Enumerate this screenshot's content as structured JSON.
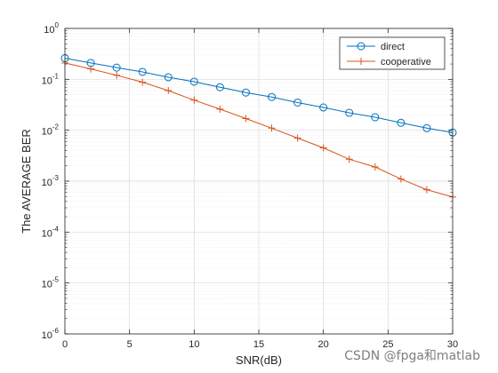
{
  "chart_data": {
    "type": "line",
    "xlabel": "SNR(dB)",
    "ylabel": "The AVERAGE BER",
    "xlim": [
      0,
      30
    ],
    "ylim": [
      1e-06,
      1
    ],
    "yscale": "log",
    "grid": true,
    "legend_position": "top-right",
    "x_ticks": [
      0,
      5,
      10,
      15,
      20,
      25,
      30
    ],
    "y_ticks": [
      {
        "mantissa": "10",
        "exp": "0"
      },
      {
        "mantissa": "10",
        "exp": "-1"
      },
      {
        "mantissa": "10",
        "exp": "-2"
      },
      {
        "mantissa": "10",
        "exp": "-3"
      },
      {
        "mantissa": "10",
        "exp": "-4"
      },
      {
        "mantissa": "10",
        "exp": "-5"
      },
      {
        "mantissa": "10",
        "exp": "-6"
      }
    ],
    "x": [
      0,
      2,
      4,
      6,
      8,
      10,
      12,
      14,
      16,
      18,
      20,
      22,
      24,
      26,
      28,
      30
    ],
    "series": [
      {
        "name": "direct",
        "color": "#0072BD",
        "marker": "circle",
        "values": [
          0.26,
          0.21,
          0.17,
          0.14,
          0.11,
          0.09,
          0.07,
          0.055,
          0.045,
          0.035,
          0.028,
          0.022,
          0.018,
          0.014,
          0.011,
          0.009
        ]
      },
      {
        "name": "cooperative",
        "color": "#D95319",
        "marker": "plus",
        "values": [
          0.21,
          0.16,
          0.12,
          0.088,
          0.06,
          0.039,
          0.026,
          0.017,
          0.011,
          0.007,
          0.0045,
          0.0027,
          0.0019,
          0.0011,
          0.00068,
          0.00049
        ]
      }
    ]
  },
  "watermark": "CSDN @fpga和matlab"
}
